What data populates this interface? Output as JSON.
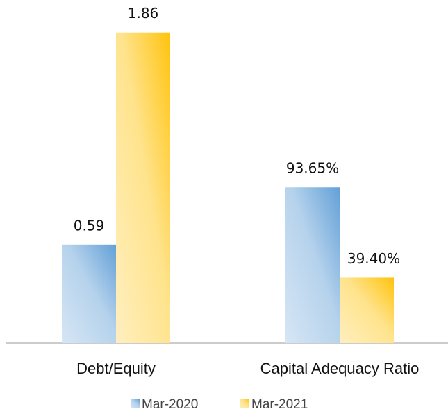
{
  "chart_data": {
    "type": "bar",
    "categories": [
      "Debt/Equity",
      "Capital Adequacy Ratio"
    ],
    "series": [
      {
        "name": "Mar-2020",
        "color": "#5b9bd5",
        "values": [
          0.59,
          93.65
        ],
        "value_labels": [
          "0.59",
          "93.65%"
        ]
      },
      {
        "name": "Mar-2021",
        "color": "#ffc000",
        "values": [
          1.86,
          39.4
        ],
        "value_labels": [
          "1.86",
          "39.40%"
        ]
      }
    ]
  }
}
